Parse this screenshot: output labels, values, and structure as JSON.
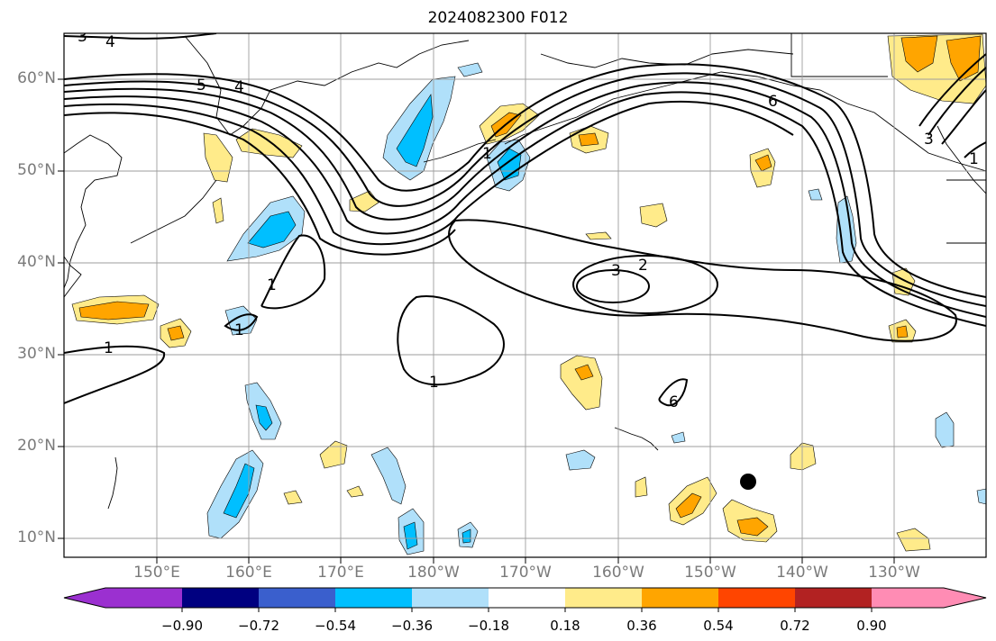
{
  "title": "2024082300 F012",
  "lat_labels": [
    "60°N",
    "50°N",
    "40°N",
    "30°N",
    "20°N",
    "10°N"
  ],
  "lon_labels": [
    "150°E",
    "160°E",
    "170°E",
    "180°W",
    "170°W",
    "160°W",
    "150°W",
    "140°W",
    "130°W"
  ],
  "contour_labels": [
    "3",
    "4",
    "5",
    "4",
    "6",
    "1",
    "3",
    "2",
    "1",
    "1",
    "1",
    "1",
    "6",
    "3",
    "1"
  ],
  "colorbar": {
    "ticks": [
      "−0.90",
      "−0.72",
      "−0.54",
      "−0.36",
      "−0.18",
      "0.18",
      "0.36",
      "0.54",
      "0.72",
      "0.90"
    ],
    "colors": [
      "#9b30d0",
      "#000080",
      "#3a5fcd",
      "#00bfff",
      "#b0e0fa",
      "#ffffff",
      "#ffeb8a",
      "#ffa500",
      "#ff4500",
      "#b22222",
      "#ff8cb4"
    ]
  },
  "fill_colors": {
    "light_yellow": "#ffeb8a",
    "orange": "#ffa500",
    "light_blue": "#b0e0fa",
    "deep_sky_blue": "#00bfff"
  },
  "marker": "storm-position-dot"
}
